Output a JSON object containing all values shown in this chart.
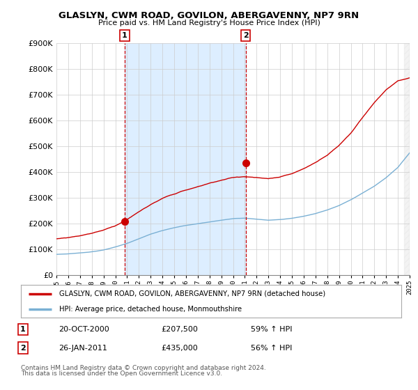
{
  "title": "GLASLYN, CWM ROAD, GOVILON, ABERGAVENNY, NP7 9RN",
  "subtitle": "Price paid vs. HM Land Registry's House Price Index (HPI)",
  "ylim": [
    0,
    900000
  ],
  "xlim_start": 1995,
  "xlim_end": 2025,
  "legend_line1": "GLASLYN, CWM ROAD, GOVILON, ABERGAVENNY, NP7 9RN (detached house)",
  "legend_line2": "HPI: Average price, detached house, Monmouthshire",
  "line1_color": "#cc0000",
  "line2_color": "#7ab0d4",
  "vline_color": "#cc0000",
  "shade_color": "#ddeeff",
  "marker1_x": 2000.8,
  "marker1_y": 207500,
  "marker2_x": 2011.07,
  "marker2_y": 435000,
  "footnote1": "Contains HM Land Registry data © Crown copyright and database right 2024.",
  "footnote2": "This data is licensed under the Open Government Licence v3.0.",
  "background_color": "#ffffff",
  "grid_color": "#cccccc",
  "ann1_date": "20-OCT-2000",
  "ann1_price": "£207,500",
  "ann1_hpi": "59% ↑ HPI",
  "ann2_date": "26-JAN-2011",
  "ann2_price": "£435,000",
  "ann2_hpi": "56% ↑ HPI",
  "hpi_base": [
    80000,
    82000,
    85000,
    90000,
    97000,
    108000,
    122000,
    140000,
    158000,
    172000,
    183000,
    192000,
    198000,
    205000,
    212000,
    218000,
    220000,
    216000,
    212000,
    215000,
    220000,
    228000,
    238000,
    252000,
    270000,
    292000,
    318000,
    345000,
    378000,
    418000,
    475000
  ],
  "prop_base": [
    140000,
    145000,
    153000,
    163000,
    176000,
    193000,
    218000,
    247000,
    275000,
    298000,
    315000,
    330000,
    342000,
    356000,
    368000,
    378000,
    382000,
    378000,
    372000,
    378000,
    390000,
    408000,
    432000,
    462000,
    500000,
    548000,
    608000,
    665000,
    715000,
    748000,
    760000
  ]
}
